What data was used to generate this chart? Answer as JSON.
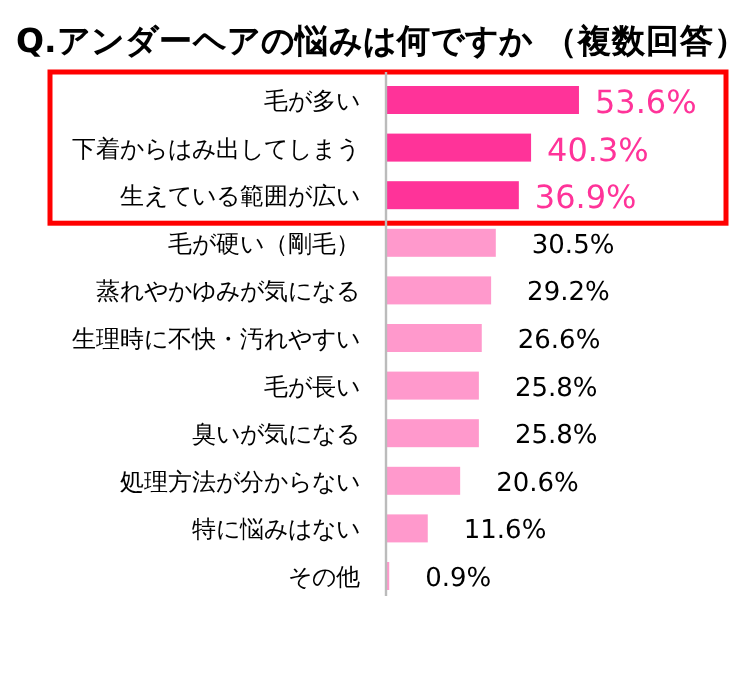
{
  "chart_data": {
    "type": "bar",
    "orientation": "horizontal",
    "relative": false,
    "title": "Q.アンダーヘアの悩みは何ですか （複数回答）",
    "categories": [
      "毛が多い",
      "下着からはみ出してしまう",
      "生えている範囲が広い",
      "毛が硬い（剛毛）",
      "蒸れやかゆみが気になる",
      "生理時に不快・汚れやすい",
      "毛が長い",
      "臭いが気になる",
      "処理方法が分からない",
      "特に悩みはない",
      "その他"
    ],
    "values": [
      53.6,
      40.3,
      36.9,
      30.5,
      29.2,
      26.6,
      25.8,
      25.8,
      20.6,
      11.6,
      0.9
    ],
    "colors": [
      "#ff3399",
      "#ff3399",
      "#ff3399",
      "#ff99cc",
      "#ff99cc",
      "#ff99cc",
      "#ff99cc",
      "#ff99cc",
      "#ff99cc",
      "#ff99cc",
      "#ff99cc"
    ],
    "value_labels": [
      "53.6%",
      "40.3%",
      "36.9%",
      "30.5%",
      "29.2%",
      "26.6%",
      "25.8%",
      "25.8%",
      "20.6%",
      "11.6%",
      "0.9%"
    ]
  }
}
